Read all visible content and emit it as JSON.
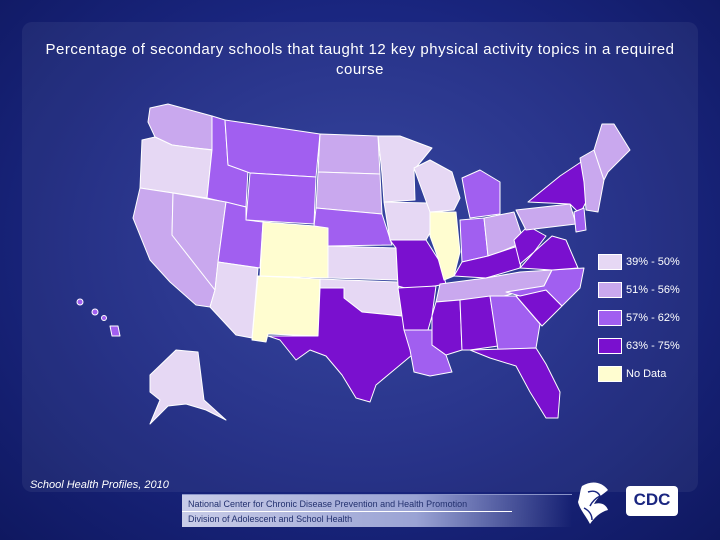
{
  "title": "Percentage of secondary schools that taught 12 key physical activity topics in a required course",
  "legend": [
    {
      "label": "39% - 50%",
      "color": "#e6d8f4"
    },
    {
      "label": "51% - 56%",
      "color": "#c9a8ee"
    },
    {
      "label": "57% - 62%",
      "color": "#a15ff0"
    },
    {
      "label": "63% - 75%",
      "color": "#7a10cf"
    },
    {
      "label": "No Data",
      "color": "#fffdd0"
    }
  ],
  "states": {
    "WA": "51% - 56%",
    "OR": "39% - 50%",
    "CA": "51% - 56%",
    "ID": "57% - 62%",
    "NV": "51% - 56%",
    "MT": "57% - 62%",
    "WY": "57% - 62%",
    "UT": "57% - 62%",
    "AZ": "39% - 50%",
    "CO": "No Data",
    "NM": "No Data",
    "ND": "51% - 56%",
    "SD": "51% - 56%",
    "NE": "57% - 62%",
    "KS": "39% - 50%",
    "OK": "39% - 50%",
    "TX": "63% - 75%",
    "MN": "39% - 50%",
    "IA": "39% - 50%",
    "MO": "63% - 75%",
    "AR": "63% - 75%",
    "LA": "57% - 62%",
    "WI": "39% - 50%",
    "IL": "No Data",
    "MI": "57% - 62%",
    "IN": "57% - 62%",
    "OH": "51% - 56%",
    "KY": "63% - 75%",
    "TN": "51% - 56%",
    "MS": "63% - 75%",
    "AL": "63% - 75%",
    "GA": "57% - 62%",
    "FL": "63% - 75%",
    "SC": "63% - 75%",
    "NC": "57% - 62%",
    "VA": "63% - 75%",
    "WV": "63% - 75%",
    "PA": "51% - 56%",
    "NY": "63% - 75%",
    "ME": "51% - 56%",
    "NJ": "57% - 62%",
    "AK": "39% - 50%",
    "HI": "57% - 62%"
  },
  "source": "School Health Profiles, 2010",
  "footer": {
    "line1": "National Center for Chronic Disease Prevention and Health Promotion",
    "line2": "Division of Adolescent and School Health"
  },
  "logo_text": "CDC",
  "icons": {
    "agency_seal": "hhs-eagle-seal-icon",
    "logo": "cdc-logo-icon"
  }
}
